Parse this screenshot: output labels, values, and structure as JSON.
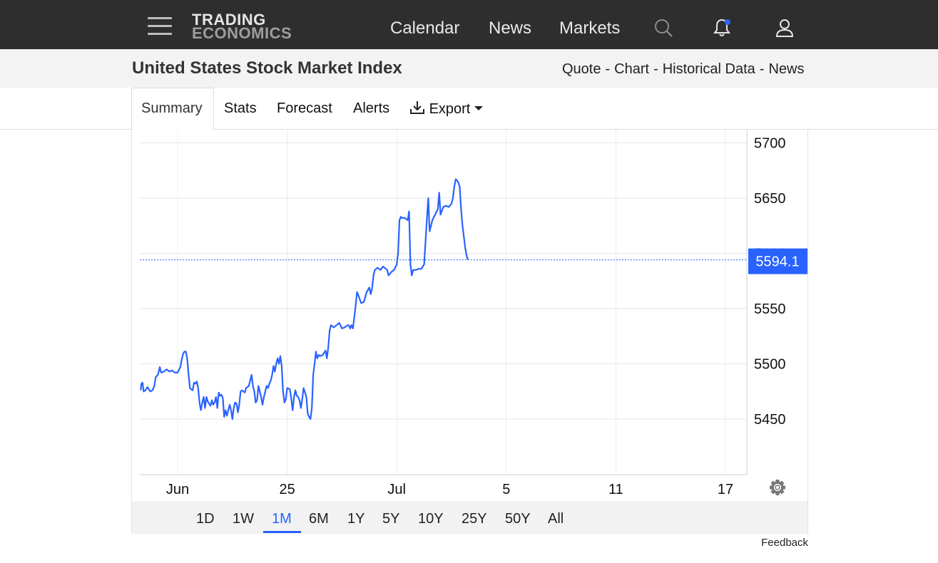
{
  "nav": {
    "logo_line1": "TRADING",
    "logo_line2": "ECONOMICS",
    "links": [
      "Calendar",
      "News",
      "Markets"
    ]
  },
  "header": {
    "title": "United States Stock Market Index",
    "breadcrumbs": [
      "Quote",
      "Chart",
      "Historical Data",
      "News"
    ],
    "separator": "-"
  },
  "tabs": [
    "Summary",
    "Stats",
    "Forecast",
    "Alerts",
    "Export"
  ],
  "active_tab": "Summary",
  "ranges": [
    "1D",
    "1W",
    "1M",
    "6M",
    "1Y",
    "5Y",
    "10Y",
    "25Y",
    "50Y",
    "All"
  ],
  "active_range": "1M",
  "feedback_label": "Feedback",
  "colors": {
    "line": "#2962ff",
    "topbar": "#2e2e2e",
    "notification_dot": "#2962ff"
  },
  "chart_data": {
    "type": "line",
    "title": "",
    "xlabel": "",
    "ylabel": "",
    "ylim": [
      5400,
      5710
    ],
    "y_ticks": [
      5450,
      5500,
      5550,
      5600,
      5650,
      5700
    ],
    "x_ticks": [
      {
        "label": "Jun",
        "day": 0
      },
      {
        "label": "25",
        "day": 4
      },
      {
        "label": "Jul",
        "day": 8
      },
      {
        "label": "5",
        "day": 12
      },
      {
        "label": "11",
        "day": 16
      },
      {
        "label": "17",
        "day": 20
      }
    ],
    "last_value": 5594.1,
    "last_value_label": "5594.1",
    "grid": true,
    "series": [
      {
        "points": [
          [
            -1.35,
            5476
          ],
          [
            -1.32,
            5482
          ],
          [
            -1.28,
            5483
          ],
          [
            -1.24,
            5475
          ],
          [
            -1.18,
            5476
          ],
          [
            -1.1,
            5479
          ],
          [
            -1.0,
            5475
          ],
          [
            -0.92,
            5476
          ],
          [
            -0.85,
            5480
          ],
          [
            -0.8,
            5488
          ],
          [
            -0.72,
            5490
          ],
          [
            -0.65,
            5497
          ],
          [
            -0.6,
            5492
          ],
          [
            -0.5,
            5493
          ],
          [
            -0.4,
            5495
          ],
          [
            -0.3,
            5493
          ],
          [
            -0.2,
            5494
          ],
          [
            -0.1,
            5492
          ],
          [
            0.0,
            5492
          ],
          [
            0.1,
            5497
          ],
          [
            0.15,
            5504
          ],
          [
            0.2,
            5509
          ],
          [
            0.25,
            5511
          ],
          [
            0.3,
            5511
          ],
          [
            0.35,
            5505
          ],
          [
            0.4,
            5490
          ],
          [
            0.45,
            5478
          ],
          [
            0.55,
            5476
          ],
          [
            0.6,
            5483
          ],
          [
            0.65,
            5482
          ],
          [
            0.7,
            5484
          ],
          [
            0.75,
            5478
          ],
          [
            0.8,
            5465
          ],
          [
            0.85,
            5458
          ],
          [
            0.9,
            5465
          ],
          [
            0.95,
            5470
          ],
          [
            1.0,
            5460
          ],
          [
            1.05,
            5470
          ],
          [
            1.1,
            5466
          ],
          [
            1.2,
            5462
          ],
          [
            1.25,
            5467
          ],
          [
            1.3,
            5463
          ],
          [
            1.35,
            5465
          ],
          [
            1.4,
            5470
          ],
          [
            1.45,
            5460
          ],
          [
            1.5,
            5474
          ],
          [
            1.55,
            5471
          ],
          [
            1.6,
            5472
          ],
          [
            1.65,
            5469
          ],
          [
            1.7,
            5452
          ],
          [
            1.75,
            5458
          ],
          [
            1.8,
            5453
          ],
          [
            1.85,
            5458
          ],
          [
            1.9,
            5463
          ],
          [
            1.95,
            5458
          ],
          [
            2.0,
            5450
          ],
          [
            2.05,
            5460
          ],
          [
            2.1,
            5465
          ],
          [
            2.15,
            5464
          ],
          [
            2.2,
            5456
          ],
          [
            2.25,
            5463
          ],
          [
            2.3,
            5475
          ],
          [
            2.35,
            5476
          ],
          [
            2.45,
            5474
          ],
          [
            2.5,
            5478
          ],
          [
            2.6,
            5480
          ],
          [
            2.65,
            5485
          ],
          [
            2.7,
            5490
          ],
          [
            2.75,
            5480
          ],
          [
            2.8,
            5475
          ],
          [
            2.85,
            5465
          ],
          [
            2.9,
            5467
          ],
          [
            2.95,
            5480
          ],
          [
            3.0,
            5475
          ],
          [
            3.05,
            5470
          ],
          [
            3.1,
            5463
          ],
          [
            3.15,
            5470
          ],
          [
            3.2,
            5475
          ],
          [
            3.25,
            5480
          ],
          [
            3.3,
            5478
          ],
          [
            3.35,
            5482
          ],
          [
            3.4,
            5485
          ],
          [
            3.45,
            5490
          ],
          [
            3.5,
            5498
          ],
          [
            3.55,
            5493
          ],
          [
            3.6,
            5500
          ],
          [
            3.65,
            5505
          ],
          [
            3.7,
            5500
          ],
          [
            3.75,
            5507
          ],
          [
            3.8,
            5498
          ],
          [
            3.85,
            5475
          ],
          [
            3.9,
            5465
          ],
          [
            3.95,
            5468
          ],
          [
            4.0,
            5478
          ],
          [
            4.1,
            5477
          ],
          [
            4.15,
            5468
          ],
          [
            4.2,
            5458
          ],
          [
            4.25,
            5470
          ],
          [
            4.3,
            5476
          ],
          [
            4.35,
            5471
          ],
          [
            4.4,
            5470
          ],
          [
            4.45,
            5467
          ],
          [
            4.5,
            5460
          ],
          [
            4.55,
            5468
          ],
          [
            4.6,
            5478
          ],
          [
            4.65,
            5474
          ],
          [
            4.7,
            5470
          ],
          [
            4.75,
            5455
          ],
          [
            4.8,
            5452
          ],
          [
            4.85,
            5450
          ],
          [
            4.9,
            5460
          ],
          [
            4.95,
            5490
          ],
          [
            5.0,
            5500
          ],
          [
            5.05,
            5511
          ],
          [
            5.1,
            5505
          ],
          [
            5.15,
            5508
          ],
          [
            5.2,
            5507
          ],
          [
            5.3,
            5508
          ],
          [
            5.4,
            5512
          ],
          [
            5.45,
            5505
          ],
          [
            5.5,
            5515
          ],
          [
            5.55,
            5530
          ],
          [
            5.6,
            5535
          ],
          [
            5.7,
            5533
          ],
          [
            5.8,
            5535
          ],
          [
            5.9,
            5537
          ],
          [
            6.0,
            5532
          ],
          [
            6.1,
            5533
          ],
          [
            6.2,
            5535
          ],
          [
            6.25,
            5535
          ],
          [
            6.3,
            5532
          ],
          [
            6.35,
            5535
          ],
          [
            6.4,
            5532
          ],
          [
            6.45,
            5542
          ],
          [
            6.5,
            5553
          ],
          [
            6.55,
            5565
          ],
          [
            6.6,
            5562
          ],
          [
            6.7,
            5555
          ],
          [
            6.8,
            5556
          ],
          [
            6.9,
            5565
          ],
          [
            7.0,
            5569
          ],
          [
            7.05,
            5563
          ],
          [
            7.1,
            5568
          ],
          [
            7.15,
            5580
          ],
          [
            7.2,
            5585
          ],
          [
            7.3,
            5587
          ],
          [
            7.4,
            5585
          ],
          [
            7.5,
            5588
          ],
          [
            7.6,
            5586
          ],
          [
            7.65,
            5585
          ],
          [
            7.7,
            5580
          ],
          [
            7.8,
            5583
          ],
          [
            7.9,
            5585
          ],
          [
            8.0,
            5590
          ],
          [
            8.05,
            5600
          ],
          [
            8.1,
            5630
          ],
          [
            8.15,
            5633
          ],
          [
            8.2,
            5632
          ],
          [
            8.3,
            5632
          ],
          [
            8.4,
            5630
          ],
          [
            8.45,
            5638
          ],
          [
            8.5,
            5590
          ],
          [
            8.55,
            5580
          ],
          [
            8.6,
            5585
          ],
          [
            8.7,
            5585
          ],
          [
            8.8,
            5586
          ],
          [
            8.9,
            5586
          ],
          [
            9.0,
            5590
          ],
          [
            9.05,
            5610
          ],
          [
            9.1,
            5630
          ],
          [
            9.15,
            5650
          ],
          [
            9.2,
            5620
          ],
          [
            9.25,
            5625
          ],
          [
            9.3,
            5630
          ],
          [
            9.4,
            5635
          ],
          [
            9.5,
            5640
          ],
          [
            9.55,
            5655
          ],
          [
            9.6,
            5635
          ],
          [
            9.7,
            5642
          ],
          [
            9.8,
            5643
          ],
          [
            9.9,
            5642
          ],
          [
            10.0,
            5645
          ],
          [
            10.05,
            5650
          ],
          [
            10.1,
            5660
          ],
          [
            10.15,
            5667
          ],
          [
            10.2,
            5666
          ],
          [
            10.25,
            5664
          ],
          [
            10.3,
            5660
          ],
          [
            10.35,
            5640
          ],
          [
            10.4,
            5625
          ],
          [
            10.45,
            5615
          ],
          [
            10.5,
            5605
          ],
          [
            10.55,
            5598
          ],
          [
            10.6,
            5594.1
          ]
        ]
      }
    ]
  }
}
